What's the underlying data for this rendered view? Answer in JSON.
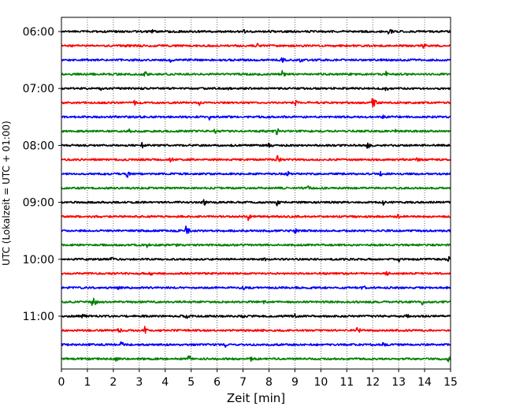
{
  "chart_data": {
    "type": "line",
    "subtype": "helicorder",
    "xlabel": "Zeit  [min]",
    "ylabel": "UTC (Lokalzeit = UTC + 01:00)",
    "xlim": [
      0,
      15
    ],
    "x_ticks": [
      0,
      1,
      2,
      3,
      4,
      5,
      6,
      7,
      8,
      9,
      10,
      11,
      12,
      13,
      14,
      15
    ],
    "y_tick_labels": [
      "06:00",
      "07:00",
      "08:00",
      "09:00",
      "10:00",
      "11:00"
    ],
    "trace_interval_min": 15,
    "trace_colors": [
      "#000000",
      "#ff0000",
      "#0000ff",
      "#008000"
    ],
    "vertical_grid": "dotted",
    "traces": [
      {
        "start": "06:00",
        "color": "#000000",
        "events": [
          [
            3.5,
            3
          ],
          [
            7.0,
            4
          ],
          [
            8.0,
            5
          ],
          [
            12.6,
            7
          ]
        ]
      },
      {
        "start": "06:15",
        "color": "#ff0000",
        "events": [
          [
            2.5,
            3
          ],
          [
            7.5,
            6
          ],
          [
            13.9,
            6
          ]
        ]
      },
      {
        "start": "06:30",
        "color": "#0000ff",
        "events": [
          [
            4.2,
            3
          ],
          [
            8.5,
            5
          ],
          [
            9.2,
            4
          ]
        ]
      },
      {
        "start": "06:45",
        "color": "#008000",
        "events": [
          [
            1.2,
            3
          ],
          [
            3.2,
            5
          ],
          [
            8.5,
            5
          ],
          [
            12.5,
            5
          ]
        ]
      },
      {
        "start": "07:00",
        "color": "#000000",
        "events": [
          [
            1.5,
            3
          ],
          [
            6.4,
            4
          ],
          [
            12.5,
            4
          ]
        ]
      },
      {
        "start": "07:15",
        "color": "#ff0000",
        "events": [
          [
            2.8,
            4
          ],
          [
            5.3,
            4
          ],
          [
            9.0,
            6
          ],
          [
            12.0,
            9
          ]
        ]
      },
      {
        "start": "07:30",
        "color": "#0000ff",
        "events": [
          [
            5.7,
            4
          ],
          [
            12.4,
            3
          ]
        ]
      },
      {
        "start": "07:45",
        "color": "#008000",
        "events": [
          [
            2.6,
            4
          ],
          [
            5.9,
            4
          ],
          [
            8.3,
            5
          ],
          [
            12.9,
            4
          ]
        ]
      },
      {
        "start": "08:00",
        "color": "#000000",
        "events": [
          [
            3.1,
            4
          ],
          [
            8.0,
            4
          ],
          [
            11.8,
            5
          ]
        ]
      },
      {
        "start": "08:15",
        "color": "#ff0000",
        "events": [
          [
            4.2,
            4
          ],
          [
            8.3,
            7
          ],
          [
            13.7,
            4
          ]
        ]
      },
      {
        "start": "08:30",
        "color": "#0000ff",
        "events": [
          [
            2.5,
            7
          ],
          [
            8.7,
            5
          ],
          [
            12.3,
            4
          ]
        ]
      },
      {
        "start": "08:45",
        "color": "#008000",
        "events": [
          [
            9.5,
            4
          ]
        ]
      },
      {
        "start": "09:00",
        "color": "#000000",
        "events": [
          [
            5.5,
            5
          ],
          [
            8.3,
            5
          ],
          [
            12.4,
            5
          ]
        ]
      },
      {
        "start": "09:15",
        "color": "#ff0000",
        "events": [
          [
            7.2,
            5
          ],
          [
            12.9,
            5
          ]
        ]
      },
      {
        "start": "09:30",
        "color": "#0000ff",
        "events": [
          [
            4.8,
            7
          ],
          [
            9.0,
            5
          ]
        ]
      },
      {
        "start": "09:45",
        "color": "#008000",
        "events": [
          [
            3.3,
            4
          ],
          [
            4.4,
            3
          ]
        ]
      },
      {
        "start": "10:00",
        "color": "#000000",
        "events": [
          [
            1.9,
            4
          ],
          [
            7.8,
            4
          ],
          [
            13.0,
            4
          ],
          [
            14.9,
            5
          ]
        ]
      },
      {
        "start": "10:15",
        "color": "#ff0000",
        "events": [
          [
            3.4,
            4
          ],
          [
            12.5,
            5
          ]
        ]
      },
      {
        "start": "10:30",
        "color": "#0000ff",
        "events": [
          [
            2.2,
            4
          ],
          [
            7.0,
            4
          ],
          [
            11.6,
            5
          ]
        ]
      },
      {
        "start": "10:45",
        "color": "#008000",
        "events": [
          [
            1.2,
            8
          ],
          [
            7.8,
            4
          ],
          [
            13.9,
            4
          ]
        ]
      },
      {
        "start": "11:00",
        "color": "#000000",
        "events": [
          [
            0.8,
            5
          ],
          [
            4.8,
            4
          ],
          [
            7.0,
            3
          ],
          [
            9.0,
            4
          ],
          [
            13.3,
            4
          ]
        ]
      },
      {
        "start": "11:15",
        "color": "#ff0000",
        "events": [
          [
            2.2,
            6
          ],
          [
            3.2,
            6
          ],
          [
            11.4,
            5
          ]
        ]
      },
      {
        "start": "11:30",
        "color": "#0000ff",
        "events": [
          [
            2.3,
            5
          ],
          [
            6.3,
            4
          ],
          [
            12.4,
            4
          ]
        ]
      },
      {
        "start": "11:45",
        "color": "#008000",
        "events": [
          [
            2.1,
            4
          ],
          [
            4.9,
            6
          ],
          [
            7.3,
            4
          ],
          [
            14.9,
            5
          ]
        ]
      }
    ]
  }
}
